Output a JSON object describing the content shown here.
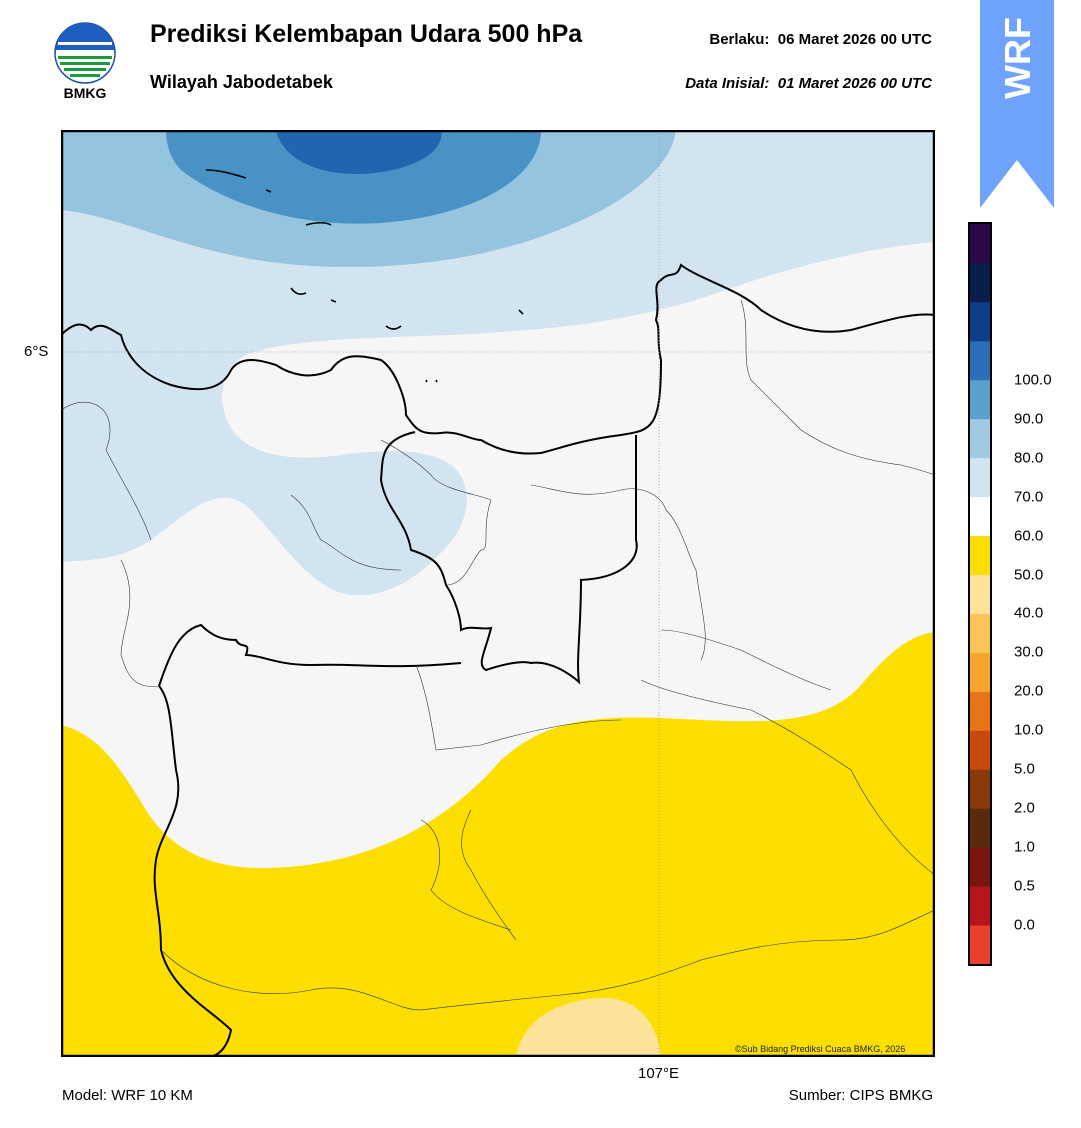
{
  "header": {
    "logo_text": "BMKG",
    "title": "Prediksi Kelembapan Udara 500 hPa",
    "subtitle": "Wilayah Jabodetabek",
    "valid_label": "Berlaku:",
    "valid_value": "06 Maret 2026 00 UTC",
    "init_label": "Data Inisial:",
    "init_value": "01 Maret 2026 00 UTC",
    "badge": "WRF"
  },
  "map": {
    "lat_label": "6°S",
    "lon_label": "107°E",
    "copyright": "©Sub Bidang Prediksi Cuaca BMKG, 2026"
  },
  "footer": {
    "model": "Model: WRF 10 KM",
    "source": "Sumber: CIPS BMKG"
  },
  "colorbar": {
    "labels": [
      "0.0",
      "0.5",
      "1.0",
      "2.0",
      "5.0",
      "10.0",
      "20.0",
      "30.0",
      "40.0",
      "50.0",
      "60.0",
      "70.0",
      "80.0",
      "90.0",
      "100.0"
    ],
    "colors": [
      "#e8412c",
      "#b8141c",
      "#7a1510",
      "#5a2a0c",
      "#8a3a0a",
      "#c84a08",
      "#e8741a",
      "#f8a430",
      "#fcc456",
      "#fde29a",
      "#fcdf00",
      "#ffffff",
      "#d2e4f0",
      "#9ec9e0",
      "#5aa0cf",
      "#2a6fb8",
      "#0e3e88",
      "#071f4a",
      "#2a0a4a"
    ]
  },
  "colors": {
    "dry_yellow": "#fcdf00",
    "light_yellow": "#fde29a",
    "neutral": "#f6f6f6",
    "blue_1": "#d2e4f0",
    "blue_2": "#94c4de",
    "blue_3": "#4892c6",
    "blue_4": "#2066ae",
    "badge_blue": "#6ea2fc"
  }
}
